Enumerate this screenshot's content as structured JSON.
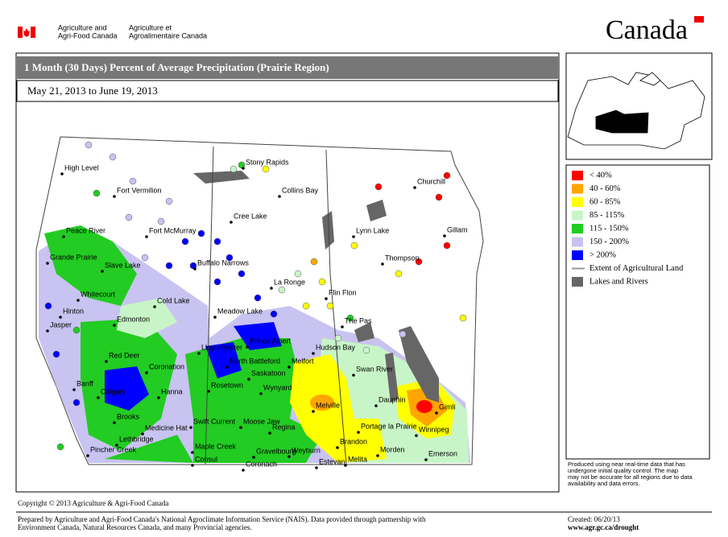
{
  "header": {
    "org_en": [
      "Agriculture and",
      "Agri-Food Canada"
    ],
    "org_fr": [
      "Agriculture et",
      "Agroalimentaire Canada"
    ],
    "wordmark": "Canada"
  },
  "title": "1 Month (30 Days) Percent of Average Precipitation  (Prairie Region)",
  "date_range": "May 21, 2013 to June 19, 2013",
  "legend": [
    {
      "label": "< 40%",
      "color": "#ff0000",
      "symbol": "box"
    },
    {
      "label": "40 - 60%",
      "color": "#ffa500",
      "symbol": "box"
    },
    {
      "label": "60 - 85%",
      "color": "#ffff00",
      "symbol": "box"
    },
    {
      "label": "85 - 115%",
      "color": "#c8f5c8",
      "symbol": "box"
    },
    {
      "label": "115 - 150%",
      "color": "#22cc22",
      "symbol": "box"
    },
    {
      "label": "150 - 200%",
      "color": "#c8c3f0",
      "symbol": "box"
    },
    {
      "label": "> 200%",
      "color": "#0000ff",
      "symbol": "box"
    },
    {
      "label": "Extent of Agricultural Land",
      "color": "#999999",
      "symbol": "line"
    },
    {
      "label": "Lakes and Rivers",
      "color": "#666666",
      "symbol": "box"
    }
  ],
  "places": [
    "High Level",
    "Fort Vermilion",
    "Peace River",
    "Fort McMurray",
    "Grande Prairie",
    "Slave Lake",
    "Whitecourt",
    "Cold Lake",
    "Edmonton",
    "Hinton",
    "Jasper",
    "Red Deer",
    "Coronation",
    "Lloydminster",
    "North Battleford",
    "Prince Albert",
    "Saskatoon",
    "Rosetown",
    "Banff",
    "Calgary",
    "Hanna",
    "Brooks",
    "Medicine Hat",
    "Lethbridge",
    "Pincher Creek",
    "Swift Current",
    "Moose Jaw",
    "Regina",
    "Maple Creek",
    "Gravelbourg",
    "Weyburn",
    "Consul",
    "Estevan",
    "Coronach",
    "Stony Rapids",
    "Collins Bay",
    "Cree Lake",
    "Buffalo Narrows",
    "La Ronge",
    "Meadow Lake",
    "Flin Flon",
    "The Pas",
    "Hudson Bay",
    "Melfort",
    "Wynyard",
    "Swan River",
    "Melville",
    "Dauphin",
    "Gimli",
    "Portage la Prairie",
    "Winnipeg",
    "Brandon",
    "Morden",
    "Melita",
    "Emerson",
    "Lynn Lake",
    "Thompson",
    "Gillam",
    "Churchill"
  ],
  "disclaimer": [
    "Produced using near real-time data that has",
    "undergone initial quality control.  The map",
    "may not be accurate for all regions due to data",
    "availability and data errors."
  ],
  "copyright": "Copyright © 2013 Agriculture & Agri-Food Canada",
  "footer": {
    "prepared": [
      "Prepared by Agriculture and Agri-Food Canada's National Agroclimate Information Service (NAIS).   Data provided through partnership with",
      "Environment Canada, Natural Resources Canada, and many Provincial agencies."
    ],
    "created": "Created: 06/20/13",
    "url": "www.agr.gc.ca/drought"
  }
}
